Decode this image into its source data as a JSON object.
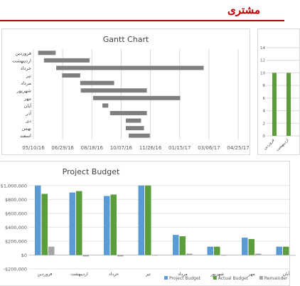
{
  "header": {
    "title": "مشتری",
    "accent_color": "#c00000"
  },
  "chart_data": [
    {
      "type": "bar",
      "subtype": "gantt",
      "title": "Gantt Chart",
      "categories": [
        "فروردین",
        "اردیبهشت",
        "خرداد",
        "تیر",
        "مرداد",
        "شهریور",
        "مهر",
        "آبان",
        "آذر",
        "دی",
        "بهمن",
        "اسفند"
      ],
      "tick_labels": [
        "05/10/16",
        "06/29/16",
        "08/18/16",
        "10/07/16",
        "11/26/16",
        "01/15/17",
        "03/06/17",
        "04/25/17"
      ],
      "xlim": [
        "2016-05-10",
        "2017-04-25"
      ],
      "start": [
        "2016-05-18",
        "2016-05-28",
        "2016-06-18",
        "2016-06-28",
        "2016-07-29",
        "2016-07-30",
        "2016-08-20",
        "2016-09-05",
        "2016-09-18",
        "2016-10-15",
        "2016-10-15",
        "2016-10-20"
      ],
      "end": [
        "2016-06-17",
        "2016-08-14",
        "2017-02-25",
        "2016-07-29",
        "2016-09-25",
        "2016-11-20",
        "2017-01-16",
        "2016-09-15",
        "2016-11-20",
        "2016-11-10",
        "2016-11-15",
        "2016-11-25"
      ],
      "bar_color": "#7f7f7f",
      "grid": true
    },
    {
      "type": "bar",
      "title": "",
      "categories": [
        "فروردین",
        "اردیبهشت"
      ],
      "yticks": [
        0,
        2,
        4,
        6,
        8,
        10,
        12,
        14
      ],
      "ylim": [
        0,
        14
      ],
      "values": [
        10,
        10
      ],
      "bar_color": "#5b9d3c",
      "grid": true,
      "note": "partially visible, clipped at right edge"
    },
    {
      "type": "bar",
      "title": "Project Budget",
      "categories": [
        "فروردین",
        "اردیبهشت",
        "خرداد",
        "تیر",
        "مرداد",
        "شهریور",
        "مهر",
        "آبان"
      ],
      "ylim": [
        -200000,
        1100000
      ],
      "yticks": [
        -200000,
        0,
        200000,
        400000,
        600000,
        800000,
        1000000
      ],
      "ytick_labels": [
        "-$200,000",
        "$0",
        "$200,000",
        "$400,000",
        "$600,000",
        "$800,000",
        "$1,000,000"
      ],
      "series": [
        {
          "name": "Project Budget",
          "color": "#5b9bd5",
          "values": [
            1000000,
            900000,
            850000,
            1000000,
            290000,
            120000,
            250000,
            120000
          ]
        },
        {
          "name": "Actual Budget",
          "color": "#5b9d3c",
          "values": [
            880000,
            920000,
            870000,
            1000000,
            270000,
            120000,
            230000,
            120000
          ]
        },
        {
          "name": "Remainder",
          "color": "#a5a5a5",
          "values": [
            120000,
            -20000,
            -20000,
            0,
            20000,
            0,
            20000,
            0
          ]
        }
      ],
      "legend": "bottom",
      "grid": true
    }
  ]
}
